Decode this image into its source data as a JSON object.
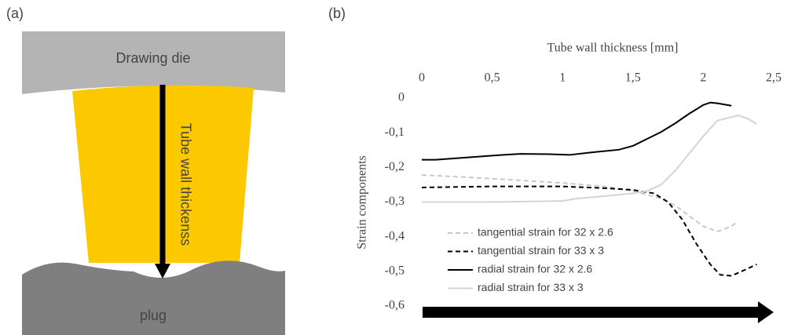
{
  "panel_a": {
    "label": "(a)",
    "die": "Drawing die",
    "thickness": "Tube wall thickenss",
    "plug": "plug"
  },
  "chart_data": {
    "type": "line",
    "panel_label": "(b)",
    "x_label": "Tube wall thickness [mm]",
    "y_label": "Strain components",
    "xlim": [
      0,
      2.5
    ],
    "ylim": [
      -0.6,
      0
    ],
    "xticks": [
      0,
      {
        "value": 0.5,
        "label": "0,5"
      },
      1,
      {
        "value": 1.5,
        "label": "1,5"
      },
      2,
      {
        "value": 2.5,
        "label": "2,5"
      }
    ],
    "yticks": [
      0,
      {
        "value": -0.1,
        "label": "-0,1"
      },
      {
        "value": -0.2,
        "label": "-0,2"
      },
      {
        "value": -0.3,
        "label": "-0,3"
      },
      {
        "value": -0.4,
        "label": "-0,4"
      },
      {
        "value": -0.5,
        "label": "-0,5"
      },
      {
        "value": -0.6,
        "label": "-0,6"
      }
    ],
    "legend": "lower left",
    "series": [
      {
        "name": "tangential strain for 32 x 2.6",
        "color": "#c8c8c8",
        "dash": true,
        "x": [
          0,
          0.3,
          0.6,
          1,
          1.3,
          1.5,
          1.7,
          1.8,
          1.9,
          2.0,
          2.1,
          2.2,
          2.23
        ],
        "values": [
          -0.222,
          -0.228,
          -0.235,
          -0.245,
          -0.255,
          -0.268,
          -0.29,
          -0.31,
          -0.34,
          -0.37,
          -0.385,
          -0.37,
          -0.36
        ]
      },
      {
        "name": "tangential strain for 33 x 3",
        "color": "#000000",
        "dash": true,
        "x": [
          0,
          0.5,
          1,
          1.3,
          1.5,
          1.65,
          1.75,
          1.85,
          1.95,
          2.05,
          2.12,
          2.2,
          2.3,
          2.38
        ],
        "values": [
          -0.258,
          -0.255,
          -0.255,
          -0.26,
          -0.265,
          -0.275,
          -0.3,
          -0.35,
          -0.42,
          -0.48,
          -0.51,
          -0.513,
          -0.495,
          -0.48
        ]
      },
      {
        "name": "radial strain for 32 x 2.6",
        "color": "#000000",
        "dash": false,
        "x": [
          0,
          0.1,
          0.3,
          0.5,
          0.7,
          0.9,
          1.05,
          1.2,
          1.4,
          1.5,
          1.6,
          1.7,
          1.8,
          1.9,
          2.0,
          2.05,
          2.1,
          2.2
        ],
        "values": [
          -0.178,
          -0.178,
          -0.172,
          -0.166,
          -0.161,
          -0.162,
          -0.164,
          -0.157,
          -0.149,
          -0.138,
          -0.118,
          -0.098,
          -0.073,
          -0.045,
          -0.02,
          -0.013,
          -0.015,
          -0.022
        ]
      },
      {
        "name": "radial strain for 33 x 3",
        "color": "#d4d4d4",
        "dash": false,
        "x": [
          0,
          0.5,
          1,
          1.1,
          1.3,
          1.5,
          1.6,
          1.7,
          1.8,
          1.9,
          2.0,
          2.1,
          2.25,
          2.32,
          2.38
        ],
        "values": [
          -0.3,
          -0.3,
          -0.297,
          -0.29,
          -0.283,
          -0.275,
          -0.268,
          -0.25,
          -0.21,
          -0.16,
          -0.11,
          -0.065,
          -0.05,
          -0.06,
          -0.075
        ]
      }
    ]
  }
}
